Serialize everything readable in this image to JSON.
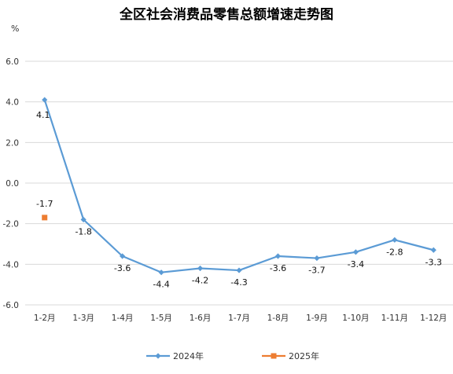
{
  "chart_data": {
    "type": "line",
    "title": "全区社会消费品零售总额增速走势图",
    "unit": "%",
    "categories": [
      "1-2月",
      "1-3月",
      "1-4月",
      "1-5月",
      "1-6月",
      "1-7月",
      "1-8月",
      "1-9月",
      "1-10月",
      "1-11月",
      "1-12月"
    ],
    "series": [
      {
        "name": "2024年",
        "color": "#5b9bd5",
        "marker": "diamond",
        "values": [
          4.1,
          -1.8,
          -3.6,
          -4.4,
          -4.2,
          -4.3,
          -3.6,
          -3.7,
          -3.4,
          -2.8,
          -3.3
        ],
        "labels": [
          "4.1",
          "-1.8",
          "-3.6",
          "-4.4",
          "-4.2",
          "-4.3",
          "-3.6",
          "-3.7",
          "-3.4",
          "-2.8",
          "-3.3"
        ]
      },
      {
        "name": "2025年",
        "color": "#ed7d31",
        "marker": "square",
        "values": [
          -1.7,
          null,
          null,
          null,
          null,
          null,
          null,
          null,
          null,
          null,
          null
        ],
        "labels": [
          "-1.7",
          "",
          "",
          "",
          "",
          "",
          "",
          "",
          "",
          "",
          ""
        ]
      }
    ],
    "yticks": [
      "6.0",
      "4.0",
      "2.0",
      "0.0",
      "-2.0",
      "-4.0",
      "-6.0"
    ],
    "ylim": [
      -6,
      6
    ],
    "grid": true,
    "legend_position": "bottom"
  }
}
